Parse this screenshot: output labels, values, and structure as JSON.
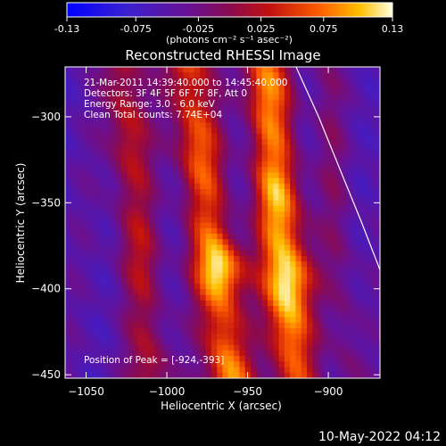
{
  "colorbar": {
    "ticks": [
      "-0.13",
      "-0.075",
      "-0.025",
      "0.025",
      "0.075",
      "0.13"
    ],
    "range": [
      -0.13,
      0.13
    ],
    "units_label": "(photons cm⁻² s⁻¹ asec⁻²)"
  },
  "chart_data": {
    "type": "heatmap",
    "title": "Reconstructed RHESSI Image",
    "xlabel": "Heliocentric X (arcsec)",
    "ylabel": "Heliocentric Y (arcsec)",
    "xlim": [
      -1063,
      -868
    ],
    "ylim": [
      -452,
      -271
    ],
    "x_ticks": [
      -1050,
      -1000,
      -950,
      -900
    ],
    "y_ticks": [
      -300,
      -350,
      -400,
      -450
    ],
    "x_tick_labels": [
      "−1050",
      "−1000",
      "−950",
      "−900"
    ],
    "y_tick_labels": [
      "−300",
      "−350",
      "−400",
      "−450"
    ],
    "annotations": [
      "21-Mar-2011 14:39:40.000 to 14:45:40.000",
      "Detectors: 3F 4F 5F 6F 7F 8F, Att 0",
      "Energy Range: 3.0 - 6.0 keV",
      "Clean     Total counts: 7.74E+04"
    ],
    "peak_label": "Position of Peak = [-924,-393]",
    "peak": [
      -924,
      -393
    ],
    "limb": [
      [
        -920,
        -271
      ],
      [
        -906,
        -300
      ],
      [
        -893,
        -330
      ],
      [
        -880,
        -360
      ],
      [
        -868,
        -389
      ],
      [
        -868,
        -430
      ]
    ],
    "ridges": [
      {
        "x_top": -987,
        "x_bottom": -961,
        "peak_value": 0.12
      },
      {
        "x_top": -939,
        "x_bottom": -921,
        "peak_value": 0.13
      },
      {
        "x_top": -1027,
        "x_bottom": -1010,
        "peak_value": 0.07
      }
    ]
  },
  "footer": {
    "date": "10-May-2022 04:12"
  }
}
